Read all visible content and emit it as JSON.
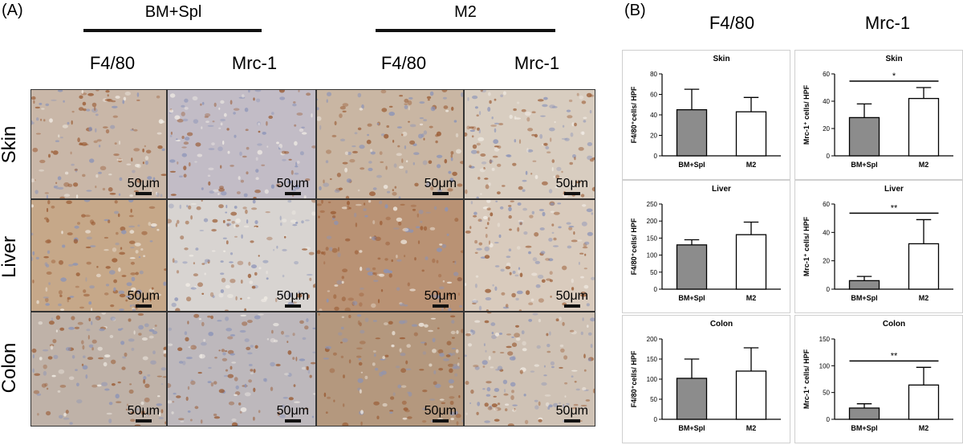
{
  "panel_a": {
    "label": "(A)",
    "groups": [
      "BM+Spl",
      "M2"
    ],
    "columns": [
      "F4/80",
      "Mrc-1",
      "F4/80",
      "Mrc-1"
    ],
    "rows": [
      "Skin",
      "Liver",
      "Colon"
    ],
    "scale_bar": "50μm",
    "tile_colors": {
      "skin_f480": "#c9b7a8",
      "skin_mrc": "#c2bcc6",
      "skin_m2_f480": "#c9b6a3",
      "skin_m2_mrc": "#d8cdc0",
      "liver_f480": "#c6a889",
      "liver_mrc": "#d8d4d1",
      "liver_m2_f480": "#b99274",
      "liver_m2_mrc": "#d9cbbd",
      "colon_f480": "#bfb2a8",
      "colon_mrc": "#bdb8bc",
      "colon_m2_f480": "#b4987e",
      "colon_m2_mrc": "#cfc2b5"
    }
  },
  "panel_b": {
    "label": "(B)",
    "column_headers": [
      "F4/80",
      "Mrc-1"
    ]
  },
  "chart_data": [
    {
      "type": "bar",
      "title": "Skin",
      "categories": [
        "BM+Spl",
        "M2"
      ],
      "values": [
        45,
        43
      ],
      "errors": [
        20,
        14
      ],
      "ylabel": "F4/80⁺cells/ HPF",
      "ylim": [
        0,
        80
      ],
      "yticks": [
        0,
        20,
        40,
        60,
        80
      ],
      "colors": [
        "#8c8c8c",
        "#ffffff"
      ],
      "significance": ""
    },
    {
      "type": "bar",
      "title": "Skin",
      "categories": [
        "BM+Spl",
        "M2"
      ],
      "values": [
        28,
        42
      ],
      "errors": [
        10,
        8
      ],
      "ylabel": "Mrc-1⁺ cells/ HPF",
      "ylim": [
        0,
        60
      ],
      "yticks": [
        0,
        20,
        40,
        60
      ],
      "colors": [
        "#8c8c8c",
        "#ffffff"
      ],
      "significance": "*"
    },
    {
      "type": "bar",
      "title": "Liver",
      "categories": [
        "BM+Spl",
        "M2"
      ],
      "values": [
        130,
        160
      ],
      "errors": [
        15,
        37
      ],
      "ylabel": "F4/80⁺cells/ HPF",
      "ylim": [
        0,
        250
      ],
      "yticks": [
        0,
        50,
        100,
        150,
        200,
        250
      ],
      "colors": [
        "#8c8c8c",
        "#ffffff"
      ],
      "significance": ""
    },
    {
      "type": "bar",
      "title": "Liver",
      "categories": [
        "BM+Spl",
        "M2"
      ],
      "values": [
        6,
        32
      ],
      "errors": [
        3,
        17
      ],
      "ylabel": "Mrc-1⁺ cells/ HPF",
      "ylim": [
        0,
        60
      ],
      "yticks": [
        0,
        20,
        40,
        60
      ],
      "colors": [
        "#8c8c8c",
        "#ffffff"
      ],
      "significance": "**"
    },
    {
      "type": "bar",
      "title": "Colon",
      "categories": [
        "BM+Spl",
        "M2"
      ],
      "values": [
        102,
        120
      ],
      "errors": [
        48,
        58
      ],
      "ylabel": "F4/80⁺cells/ HPF",
      "ylim": [
        0,
        200
      ],
      "yticks": [
        0,
        50,
        100,
        150,
        200
      ],
      "colors": [
        "#8c8c8c",
        "#ffffff"
      ],
      "significance": ""
    },
    {
      "type": "bar",
      "title": "Colon",
      "categories": [
        "BM+Spl",
        "M2"
      ],
      "values": [
        21,
        64
      ],
      "errors": [
        8,
        33
      ],
      "ylabel": "Mrc-1⁺ cells/ HPF",
      "ylim": [
        0,
        150
      ],
      "yticks": [
        0,
        50,
        100,
        150
      ],
      "colors": [
        "#8c8c8c",
        "#ffffff"
      ],
      "significance": "**"
    }
  ]
}
